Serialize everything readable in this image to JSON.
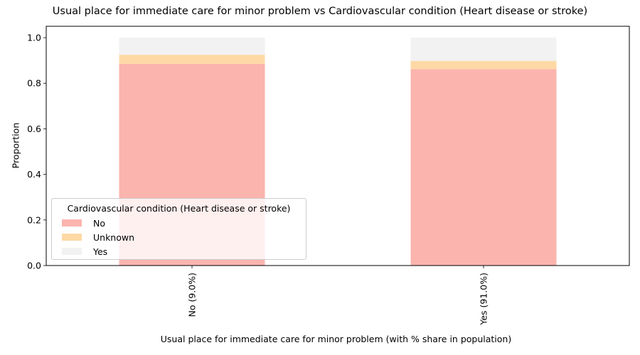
{
  "chart_data": {
    "type": "bar",
    "stacked": true,
    "title": "Usual place for immediate care for minor problem vs Cardiovascular condition (Heart disease or stroke)",
    "xlabel": "Usual place for immediate care for minor problem (with % share in population)",
    "ylabel": "Proportion",
    "categories": [
      "No (9.0%)",
      "Yes (91.0%)"
    ],
    "series": [
      {
        "name": "No",
        "color": "#fbb4ae",
        "values": [
          0.885,
          0.862
        ]
      },
      {
        "name": "Unknown",
        "color": "#fed9a6",
        "values": [
          0.04,
          0.036
        ]
      },
      {
        "name": "Yes",
        "color": "#f2f2f2",
        "values": [
          0.075,
          0.102
        ]
      }
    ],
    "ylim": [
      0,
      1.05
    ],
    "yticks": [
      "0.0",
      "0.2",
      "0.4",
      "0.6",
      "0.8",
      "1.0"
    ],
    "legend": {
      "title": "Cardiovascular condition (Heart disease or stroke)",
      "placement": "lower-left"
    },
    "grid": false
  }
}
